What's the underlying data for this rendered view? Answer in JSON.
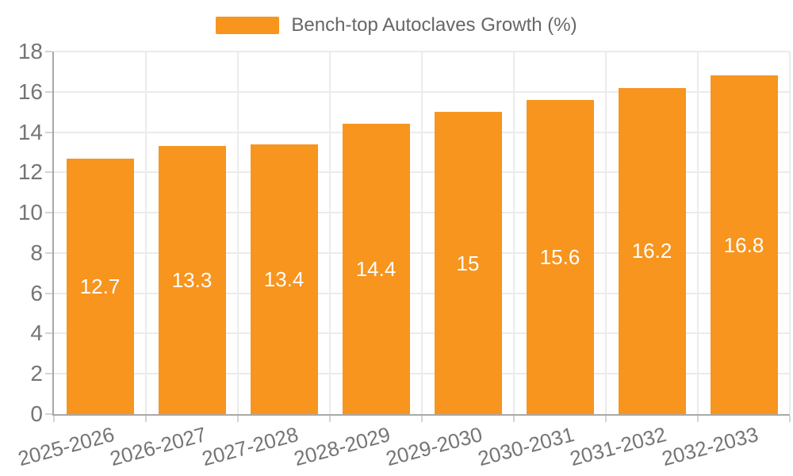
{
  "chart_data": {
    "type": "bar",
    "title": "Bench-top Autoclaves Growth (%)",
    "legend": [
      "Bench-top Autoclaves Growth (%)"
    ],
    "legend_position": "top-center",
    "categories": [
      "2025-2026",
      "2026-2027",
      "2027-2028",
      "2028-2029",
      "2029-2030",
      "2030-2031",
      "2031-2032",
      "2032-2033"
    ],
    "values": [
      12.7,
      13.3,
      13.4,
      14.4,
      15,
      15.6,
      16.2,
      16.8
    ],
    "value_labels": [
      "12.7",
      "13.3",
      "13.4",
      "14.4",
      "15",
      "15.6",
      "16.2",
      "16.8"
    ],
    "xlabel": "",
    "ylabel": "",
    "ylim": [
      0,
      18
    ],
    "ytick_interval": 2,
    "ytick_labels": [
      "0",
      "2",
      "4",
      "6",
      "8",
      "10",
      "12",
      "14",
      "16",
      "18"
    ],
    "grid": true,
    "bar_color": "#f7951f",
    "value_label_color": "#ffffff",
    "axis_text_color": "#757575",
    "legend_text_color": "#666666"
  }
}
